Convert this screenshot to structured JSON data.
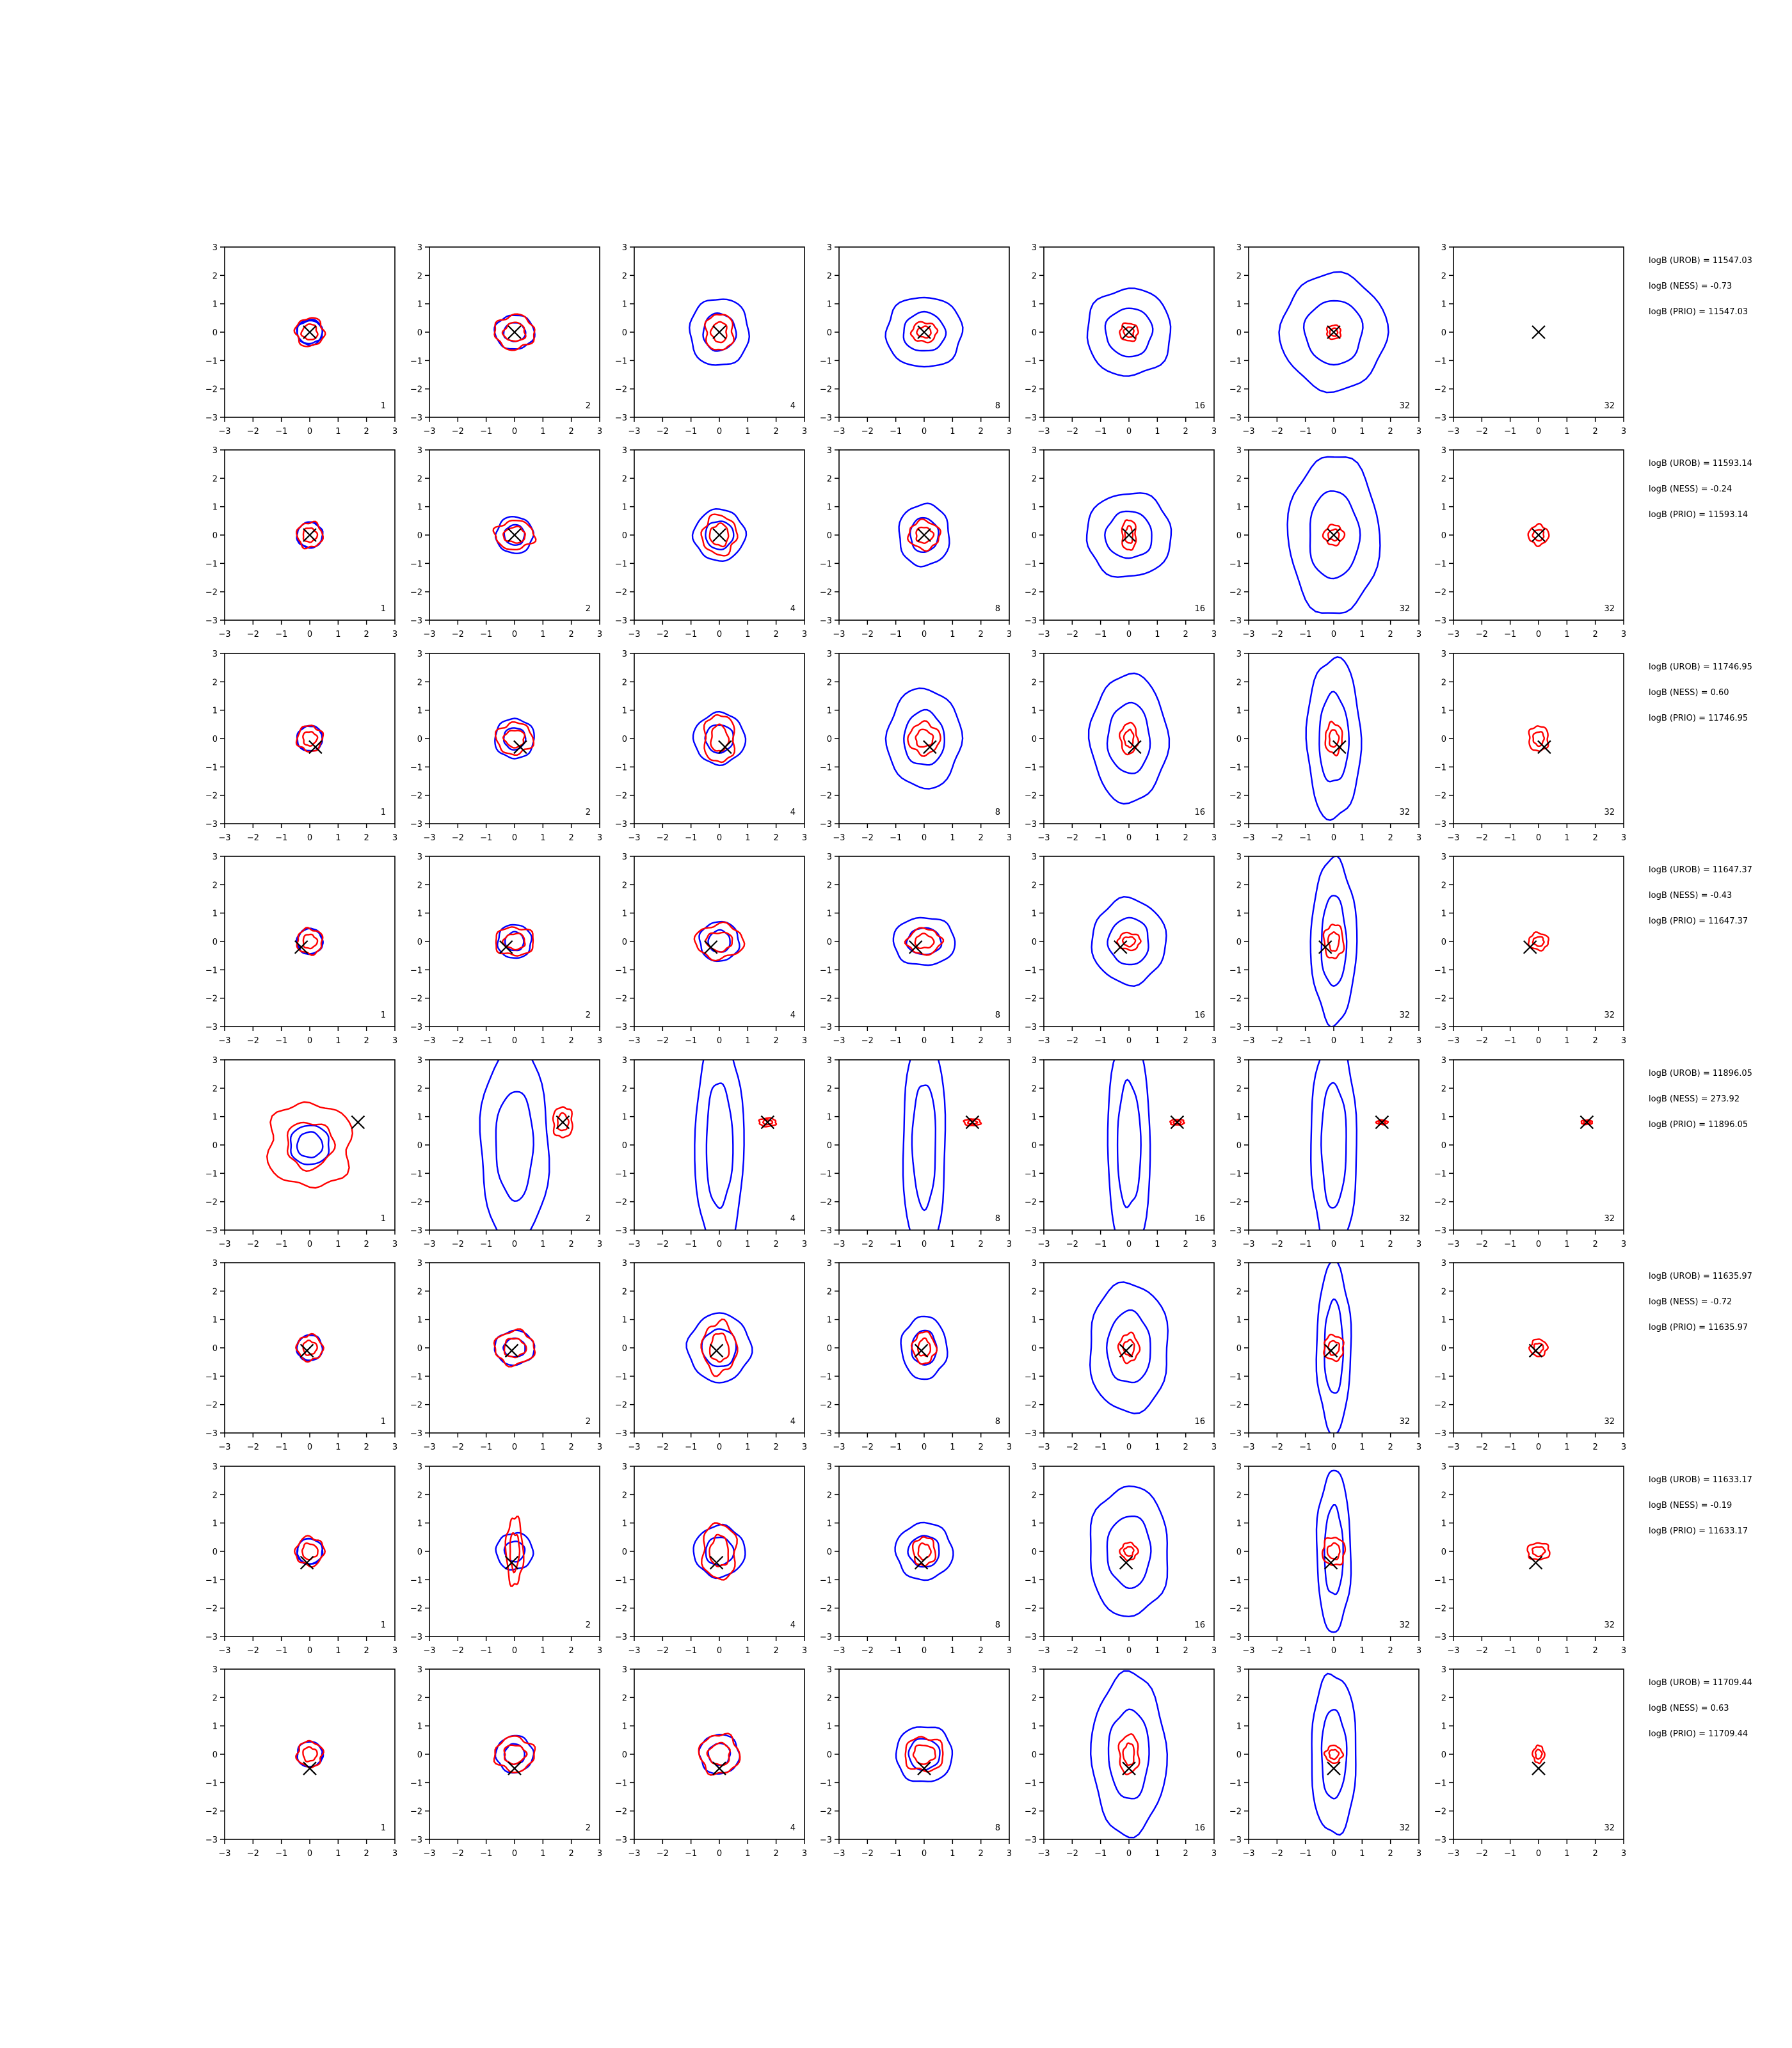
{
  "colors": {
    "outer": "#0000ff",
    "inner": "#ff0000",
    "marker": "#000000",
    "axis": "#000000"
  },
  "tick_labels": [
    "−3",
    "−2",
    "−1",
    "0",
    "1",
    "2",
    "3"
  ],
  "chart_data": {
    "type": "contour-grid",
    "rows": 8,
    "cols": 7,
    "xlim": [
      -3,
      3
    ],
    "ylim": [
      -3,
      3
    ],
    "xticks": [
      -3,
      -2,
      -1,
      0,
      1,
      2,
      3
    ],
    "yticks": [
      -3,
      -2,
      -1,
      0,
      1,
      2,
      3
    ],
    "panel_labels": [
      "1",
      "2",
      "4",
      "8",
      "16",
      "32",
      "32"
    ],
    "rows_data": [
      {
        "marker": [
          0.0,
          0.0
        ],
        "blue": [
          [
            0.45,
            0.4
          ],
          [
            0.7,
            0.6
          ],
          [
            1.05,
            1.2
          ],
          [
            1.35,
            1.25
          ],
          [
            1.5,
            1.55
          ],
          [
            1.85,
            2.05
          ],
          [
            2.8,
            2.9
          ],
          [
            2.3,
            2.85
          ],
          [
            0,
            0
          ]
        ],
        "red": [
          [
            0.5,
            0.5
          ],
          [
            0.7,
            0.6
          ],
          [
            0.5,
            0.65
          ],
          [
            0.45,
            0.35
          ],
          [
            0.32,
            0.32
          ],
          [
            0.25,
            0.25
          ],
          [
            0,
            0
          ]
        ],
        "stats": [
          "logB (UROB) = 11547.03",
          "logB (NESS) = -0.73",
          "logB (PRIO) = 11547.03"
        ]
      },
      {
        "marker": [
          0.0,
          0.0
        ],
        "blue": [
          [
            0.45,
            0.45
          ],
          [
            0.65,
            0.65
          ],
          [
            0.9,
            0.9
          ],
          [
            0.9,
            1.1
          ],
          [
            1.5,
            1.5
          ],
          [
            1.6,
            2.8
          ],
          [
            1.8,
            2.85
          ],
          [
            0,
            0
          ]
        ],
        "red": [
          [
            0.45,
            0.45
          ],
          [
            0.7,
            0.5
          ],
          [
            0.6,
            0.7
          ],
          [
            0.55,
            0.5
          ],
          [
            0.25,
            0.55
          ],
          [
            0.35,
            0.35
          ],
          [
            0.35,
            0.35
          ]
        ],
        "stats": [
          "logB (UROB) = 11593.14",
          "logB (NESS) = -0.24",
          "logB (PRIO) = 11593.14"
        ]
      },
      {
        "marker": [
          0.2,
          -0.3
        ],
        "blue": [
          [
            0.45,
            0.45
          ],
          [
            0.7,
            0.7
          ],
          [
            0.9,
            0.9
          ],
          [
            1.3,
            1.75
          ],
          [
            1.35,
            2.25
          ],
          [
            0.95,
            2.85
          ],
          [
            1.15,
            2.45
          ],
          [
            0,
            0
          ]
        ],
        "red": [
          [
            0.45,
            0.45
          ],
          [
            0.65,
            0.55
          ],
          [
            0.55,
            0.85
          ],
          [
            0.55,
            0.55
          ],
          [
            0.3,
            0.55
          ],
          [
            0.3,
            0.55
          ],
          [
            0.35,
            0.45
          ]
        ],
        "stats": [
          "logB (UROB) = 11746.95",
          "logB (NESS) = 0.60",
          "logB (PRIO) = 11746.95"
        ]
      },
      {
        "marker": [
          -0.3,
          -0.2
        ],
        "blue": [
          [
            0.45,
            0.45
          ],
          [
            0.6,
            0.6
          ],
          [
            0.7,
            0.7
          ],
          [
            1.1,
            0.85
          ],
          [
            1.3,
            1.5
          ],
          [
            0.8,
            2.9
          ],
          [
            0,
            0
          ]
        ],
        "red": [
          [
            0.45,
            0.45
          ],
          [
            0.7,
            0.5
          ],
          [
            0.85,
            0.6
          ],
          [
            0.6,
            0.45
          ],
          [
            0.4,
            0.3
          ],
          [
            0.35,
            0.6
          ],
          [
            0.35,
            0.3
          ]
        ],
        "stats": [
          "logB (UROB) = 11647.37",
          "logB (NESS) = -0.43",
          "logB (PRIO) = 11647.37"
        ]
      },
      {
        "marker": [
          1.7,
          0.8
        ],
        "blue": [
          [
            0.7,
            0.7
          ],
          [
            1.2,
            3.5
          ],
          [
            0.85,
            4.0
          ],
          [
            0.75,
            4.0
          ],
          [
            0.75,
            4.0
          ],
          [
            0.8,
            4.0
          ],
          [
            0,
            0
          ]
        ],
        "red": [
          [
            1.5,
            1.5
          ],
          [
            0.35,
            0.55
          ],
          [
            0.3,
            0.15
          ],
          [
            0.3,
            0.12
          ],
          [
            0.25,
            0.1
          ],
          [
            0.2,
            0.08
          ],
          [
            0.2,
            0.08
          ]
        ],
        "stats": [
          "logB (UROB) = 11896.05",
          "logB (NESS) = 273.92",
          "logB (PRIO) = 11896.05"
        ]
      },
      {
        "marker": [
          -0.1,
          -0.1
        ],
        "blue": [
          [
            0.45,
            0.45
          ],
          [
            0.7,
            0.6
          ],
          [
            1.1,
            1.2
          ],
          [
            0.8,
            1.1
          ],
          [
            1.4,
            2.3
          ],
          [
            0.6,
            3.0
          ],
          [
            0,
            0
          ]
        ],
        "red": [
          [
            0.45,
            0.45
          ],
          [
            0.7,
            0.6
          ],
          [
            0.6,
            0.9
          ],
          [
            0.4,
            0.55
          ],
          [
            0.35,
            0.5
          ],
          [
            0.35,
            0.45
          ],
          [
            0.3,
            0.3
          ]
        ],
        "stats": [
          "logB (UROB) = 11635.97",
          "logB (NESS) = -0.72",
          "logB (PRIO) = 11635.97"
        ]
      },
      {
        "marker": [
          -0.1,
          -0.4
        ],
        "blue": [
          [
            0.45,
            0.45
          ],
          [
            0.65,
            0.65
          ],
          [
            0.9,
            0.9
          ],
          [
            1.0,
            1.0
          ],
          [
            1.4,
            2.3
          ],
          [
            0.6,
            2.85
          ],
          [
            0,
            0
          ]
        ],
        "red": [
          [
            0.5,
            0.5
          ],
          [
            0.3,
            1.2
          ],
          [
            0.6,
            1.0
          ],
          [
            0.4,
            0.5
          ],
          [
            0.3,
            0.3
          ],
          [
            0.4,
            0.5
          ],
          [
            0.4,
            0.3
          ]
        ],
        "stats": [
          "logB (UROB) = 11633.17",
          "logB (NESS) = -0.19",
          "logB (PRIO) = 11633.17"
        ]
      },
      {
        "marker": [
          0.0,
          -0.5
        ],
        "blue": [
          [
            0.45,
            0.45
          ],
          [
            0.65,
            0.65
          ],
          [
            0.7,
            0.7
          ],
          [
            1.0,
            1.0
          ],
          [
            1.3,
            2.85
          ],
          [
            0.8,
            2.85
          ],
          [
            0,
            0
          ]
        ],
        "red": [
          [
            0.45,
            0.45
          ],
          [
            0.7,
            0.6
          ],
          [
            0.7,
            0.7
          ],
          [
            0.7,
            0.6
          ],
          [
            0.35,
            0.7
          ],
          [
            0.3,
            0.3
          ],
          [
            0.2,
            0.3
          ]
        ],
        "stats": [
          "logB (UROB) = 11709.44",
          "logB (NESS) = 0.63",
          "logB (PRIO) = 11709.44"
        ]
      }
    ]
  }
}
